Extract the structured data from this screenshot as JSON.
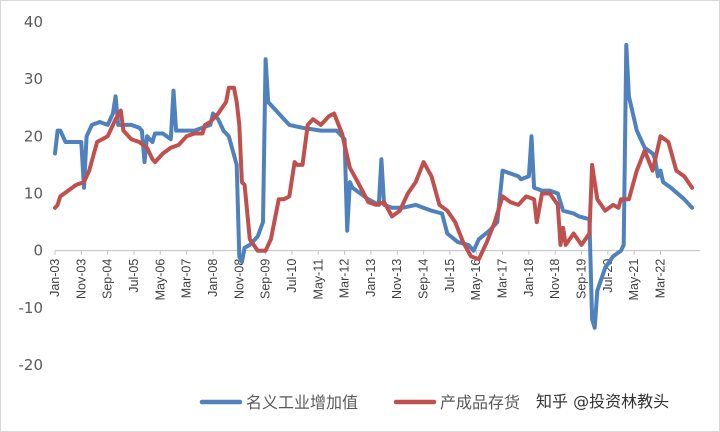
{
  "watermark": "知乎 @投资林教头",
  "colors": {
    "series_blue": "#4F81BD",
    "series_red": "#C0504D"
  },
  "chart_data": {
    "type": "line",
    "title": "",
    "xlabel": "",
    "ylabel": "",
    "ylim": [
      -20,
      40
    ],
    "yticks": [
      -20,
      -10,
      0,
      10,
      20,
      30,
      40
    ],
    "xlim": [
      "2003-01",
      "2023-06"
    ],
    "x_tick_labels": [
      "Jan-03",
      "Nov-03",
      "Sep-04",
      "Jul-05",
      "May-06",
      "Mar-07",
      "Jan-08",
      "Nov-08",
      "Sep-09",
      "Jul-10",
      "May-11",
      "Mar-12",
      "Jan-13",
      "Nov-13",
      "Sep-14",
      "Jul-15",
      "May-16",
      "Mar-17",
      "Jan-18",
      "Nov-18",
      "Sep-19",
      "Jul-20",
      "May-21",
      "Mar-22"
    ],
    "legend_position": "bottom",
    "grid": "horizontal",
    "series": [
      {
        "name": "名义工业增加值",
        "color": "#4F81BD",
        "points": [
          [
            "2003-01",
            17
          ],
          [
            "2003-02",
            21
          ],
          [
            "2003-03",
            21
          ],
          [
            "2003-05",
            19
          ],
          [
            "2003-08",
            19
          ],
          [
            "2003-10",
            19
          ],
          [
            "2003-11",
            19
          ],
          [
            "2003-12",
            11
          ],
          [
            "2004-01",
            20
          ],
          [
            "2004-03",
            22
          ],
          [
            "2004-06",
            22.5
          ],
          [
            "2004-09",
            22
          ],
          [
            "2004-11",
            24
          ],
          [
            "2004-12",
            27
          ],
          [
            "2005-01",
            22
          ],
          [
            "2005-06",
            22
          ],
          [
            "2005-09",
            21.5
          ],
          [
            "2005-10",
            21
          ],
          [
            "2005-11",
            15.5
          ],
          [
            "2005-12",
            20
          ],
          [
            "2006-02",
            19
          ],
          [
            "2006-03",
            20.5
          ],
          [
            "2006-06",
            20.5
          ],
          [
            "2006-09",
            19.5
          ],
          [
            "2006-10",
            28
          ],
          [
            "2006-11",
            21
          ],
          [
            "2007-03",
            21
          ],
          [
            "2007-06",
            21
          ],
          [
            "2007-09",
            21.5
          ],
          [
            "2007-12",
            22
          ],
          [
            "2008-01",
            24
          ],
          [
            "2008-03",
            23
          ],
          [
            "2008-05",
            21
          ],
          [
            "2008-07",
            20
          ],
          [
            "2008-10",
            15
          ],
          [
            "2008-11",
            -1
          ],
          [
            "2008-12",
            -2
          ],
          [
            "2009-01",
            0.5
          ],
          [
            "2009-03",
            1
          ],
          [
            "2009-06",
            2.5
          ],
          [
            "2009-08",
            5
          ],
          [
            "2009-09",
            33.5
          ],
          [
            "2009-10",
            26
          ],
          [
            "2010-01",
            24.5
          ],
          [
            "2010-06",
            22
          ],
          [
            "2010-11",
            21.5
          ],
          [
            "2011-06",
            21
          ],
          [
            "2011-12",
            21
          ],
          [
            "2012-03",
            19.5
          ],
          [
            "2012-04",
            3.5
          ],
          [
            "2012-05",
            12
          ],
          [
            "2012-06",
            11
          ],
          [
            "2012-12",
            9
          ],
          [
            "2013-04",
            8
          ],
          [
            "2013-05",
            16
          ],
          [
            "2013-06",
            8
          ],
          [
            "2013-09",
            7.5
          ],
          [
            "2014-01",
            7.5
          ],
          [
            "2014-06",
            8
          ],
          [
            "2014-12",
            7
          ],
          [
            "2015-04",
            6.5
          ],
          [
            "2015-06",
            3
          ],
          [
            "2015-10",
            1.5
          ],
          [
            "2016-02",
            1
          ],
          [
            "2016-04",
            0
          ],
          [
            "2016-06",
            2
          ],
          [
            "2016-10",
            3.5
          ],
          [
            "2017-01",
            5
          ],
          [
            "2017-03",
            14
          ],
          [
            "2017-06",
            13.5
          ],
          [
            "2017-09",
            13
          ],
          [
            "2017-10",
            12.5
          ],
          [
            "2018-01",
            13
          ],
          [
            "2018-02",
            20
          ],
          [
            "2018-03",
            11
          ],
          [
            "2018-06",
            10.5
          ],
          [
            "2018-09",
            10.5
          ],
          [
            "2018-12",
            10
          ],
          [
            "2019-02",
            7
          ],
          [
            "2019-06",
            6.5
          ],
          [
            "2019-08",
            6
          ],
          [
            "2019-12",
            5.5
          ],
          [
            "2020-01",
            -12
          ],
          [
            "2020-02",
            -13.5
          ],
          [
            "2020-03",
            -7
          ],
          [
            "2020-06",
            -3
          ],
          [
            "2020-09",
            -1
          ],
          [
            "2020-12",
            0
          ],
          [
            "2021-01",
            1
          ],
          [
            "2021-02",
            36
          ],
          [
            "2021-03",
            27
          ],
          [
            "2021-06",
            21
          ],
          [
            "2021-09",
            18
          ],
          [
            "2021-12",
            17
          ],
          [
            "2022-01",
            16
          ],
          [
            "2022-02",
            13
          ],
          [
            "2022-03",
            14
          ],
          [
            "2022-04",
            12
          ],
          [
            "2022-07",
            11
          ],
          [
            "2022-12",
            9
          ],
          [
            "2023-03",
            7.5
          ]
        ]
      },
      {
        "name": "产成品存货",
        "color": "#C0504D",
        "points": [
          [
            "2003-01",
            7.5
          ],
          [
            "2003-02",
            8
          ],
          [
            "2003-03",
            9.5
          ],
          [
            "2003-06",
            10.5
          ],
          [
            "2003-09",
            11.5
          ],
          [
            "2003-12",
            12
          ],
          [
            "2004-02",
            14
          ],
          [
            "2004-05",
            19
          ],
          [
            "2004-09",
            20
          ],
          [
            "2004-12",
            23
          ],
          [
            "2005-02",
            24.5
          ],
          [
            "2005-03",
            21
          ],
          [
            "2005-06",
            19.5
          ],
          [
            "2005-09",
            19
          ],
          [
            "2005-12",
            18
          ],
          [
            "2006-02",
            16
          ],
          [
            "2006-03",
            15.5
          ],
          [
            "2006-06",
            17
          ],
          [
            "2006-09",
            18
          ],
          [
            "2006-12",
            18.5
          ],
          [
            "2007-03",
            20
          ],
          [
            "2007-06",
            20.5
          ],
          [
            "2007-09",
            20.5
          ],
          [
            "2007-10",
            22
          ],
          [
            "2007-12",
            22.5
          ],
          [
            "2008-03",
            24
          ],
          [
            "2008-06",
            26
          ],
          [
            "2008-07",
            28.5
          ],
          [
            "2008-09",
            28.5
          ],
          [
            "2008-10",
            26
          ],
          [
            "2008-11",
            22
          ],
          [
            "2008-12",
            12
          ],
          [
            "2009-01",
            11.5
          ],
          [
            "2009-03",
            2
          ],
          [
            "2009-06",
            0
          ],
          [
            "2009-09",
            0
          ],
          [
            "2009-11",
            2
          ],
          [
            "2010-02",
            9
          ],
          [
            "2010-04",
            9
          ],
          [
            "2010-06",
            9.5
          ],
          [
            "2010-08",
            15.5
          ],
          [
            "2010-09",
            15
          ],
          [
            "2010-11",
            15
          ],
          [
            "2011-01",
            22
          ],
          [
            "2011-03",
            23
          ],
          [
            "2011-06",
            22
          ],
          [
            "2011-09",
            23.5
          ],
          [
            "2011-11",
            24
          ],
          [
            "2012-02",
            20.5
          ],
          [
            "2012-05",
            14.5
          ],
          [
            "2012-08",
            12
          ],
          [
            "2012-12",
            8.5
          ],
          [
            "2013-03",
            8
          ],
          [
            "2013-06",
            8.5
          ],
          [
            "2013-09",
            6
          ],
          [
            "2013-12",
            7
          ],
          [
            "2014-03",
            10
          ],
          [
            "2014-06",
            12
          ],
          [
            "2014-09",
            15.5
          ],
          [
            "2014-12",
            13
          ],
          [
            "2015-03",
            8
          ],
          [
            "2015-06",
            7
          ],
          [
            "2015-09",
            5
          ],
          [
            "2015-12",
            1.5
          ],
          [
            "2016-03",
            -1
          ],
          [
            "2016-06",
            -1.5
          ],
          [
            "2016-09",
            1.5
          ],
          [
            "2016-12",
            5
          ],
          [
            "2017-03",
            9.5
          ],
          [
            "2017-06",
            8.5
          ],
          [
            "2017-09",
            8
          ],
          [
            "2017-12",
            9.5
          ],
          [
            "2018-03",
            9
          ],
          [
            "2018-04",
            5
          ],
          [
            "2018-06",
            10
          ],
          [
            "2018-09",
            10
          ],
          [
            "2018-12",
            8
          ],
          [
            "2019-01",
            1
          ],
          [
            "2019-02",
            4
          ],
          [
            "2019-03",
            1
          ],
          [
            "2019-06",
            3
          ],
          [
            "2019-09",
            1
          ],
          [
            "2019-12",
            3
          ],
          [
            "2020-01",
            15
          ],
          [
            "2020-03",
            9
          ],
          [
            "2020-06",
            7
          ],
          [
            "2020-09",
            8
          ],
          [
            "2020-11",
            7.5
          ],
          [
            "2020-12",
            9
          ],
          [
            "2021-03",
            9
          ],
          [
            "2021-06",
            14
          ],
          [
            "2021-09",
            17.5
          ],
          [
            "2021-12",
            14
          ],
          [
            "2022-03",
            20
          ],
          [
            "2022-06",
            19
          ],
          [
            "2022-09",
            14
          ],
          [
            "2022-12",
            13
          ],
          [
            "2023-03",
            11
          ]
        ]
      }
    ]
  }
}
